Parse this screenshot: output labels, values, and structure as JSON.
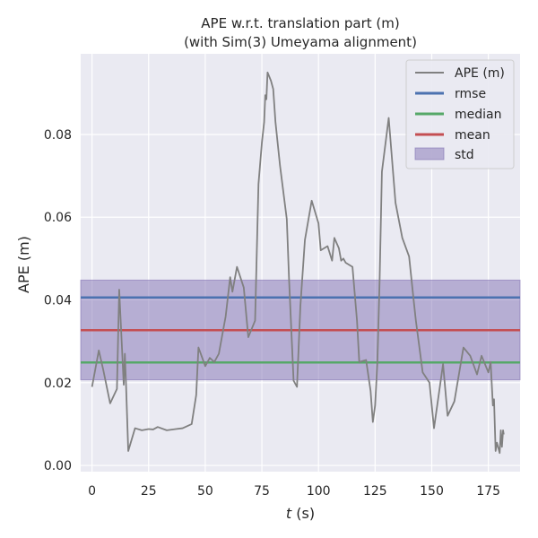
{
  "chart_data": {
    "type": "line",
    "title": [
      "APE w.r.t. translation part (m)",
      "(with Sim(3) Umeyama alignment)"
    ],
    "xlabel_var": "t",
    "xlabel_unit": " (s)",
    "ylabel": "APE (m)",
    "xlim": [
      -5,
      189
    ],
    "ylim": [
      -0.0015,
      0.0995
    ],
    "xticks": [
      0,
      25,
      50,
      75,
      100,
      125,
      150,
      175
    ],
    "yticks": [
      0.0,
      0.02,
      0.04,
      0.06,
      0.08
    ],
    "ytick_labels": [
      "0.00",
      "0.02",
      "0.04",
      "0.06",
      "0.08"
    ],
    "grid": true,
    "legend_position": "top-right",
    "series": [
      {
        "name": "APE (m)",
        "color": "#808080",
        "points": [
          [
            0,
            0.019
          ],
          [
            3,
            0.0278
          ],
          [
            5,
            0.023
          ],
          [
            8,
            0.015
          ],
          [
            11,
            0.0185
          ],
          [
            12,
            0.0425
          ],
          [
            14,
            0.0195
          ],
          [
            14.5,
            0.027
          ],
          [
            15,
            0.0198
          ],
          [
            16,
            0.0035
          ],
          [
            19,
            0.009
          ],
          [
            22,
            0.0085
          ],
          [
            25,
            0.0088
          ],
          [
            27,
            0.0087
          ],
          [
            29,
            0.0093
          ],
          [
            33,
            0.0085
          ],
          [
            37,
            0.0088
          ],
          [
            40,
            0.009
          ],
          [
            44,
            0.01
          ],
          [
            46,
            0.017
          ],
          [
            47,
            0.0285
          ],
          [
            50,
            0.024
          ],
          [
            52,
            0.026
          ],
          [
            54,
            0.025
          ],
          [
            56,
            0.027
          ],
          [
            59,
            0.036
          ],
          [
            61,
            0.0455
          ],
          [
            62,
            0.042
          ],
          [
            64,
            0.048
          ],
          [
            67,
            0.043
          ],
          [
            69,
            0.031
          ],
          [
            72,
            0.035
          ],
          [
            73.5,
            0.068
          ],
          [
            75,
            0.078
          ],
          [
            76,
            0.083
          ],
          [
            76.5,
            0.0895
          ],
          [
            77,
            0.0885
          ],
          [
            77.5,
            0.095
          ],
          [
            79,
            0.093
          ],
          [
            80,
            0.091
          ],
          [
            81,
            0.083
          ],
          [
            83,
            0.0725
          ],
          [
            86,
            0.0595
          ],
          [
            87,
            0.045
          ],
          [
            89,
            0.0205
          ],
          [
            90.5,
            0.019
          ],
          [
            92,
            0.0385
          ],
          [
            94,
            0.0545
          ],
          [
            97,
            0.064
          ],
          [
            100,
            0.0585
          ],
          [
            101,
            0.052
          ],
          [
            104,
            0.053
          ],
          [
            106,
            0.0495
          ],
          [
            107,
            0.055
          ],
          [
            109,
            0.0525
          ],
          [
            110,
            0.0495
          ],
          [
            111,
            0.05
          ],
          [
            112,
            0.049
          ],
          [
            115,
            0.048
          ],
          [
            117,
            0.035
          ],
          [
            118,
            0.025
          ],
          [
            121,
            0.0255
          ],
          [
            123,
            0.018
          ],
          [
            124,
            0.0105
          ],
          [
            125,
            0.0145
          ],
          [
            126,
            0.025
          ],
          [
            127,
            0.045
          ],
          [
            128,
            0.071
          ],
          [
            131,
            0.084
          ],
          [
            134,
            0.0635
          ],
          [
            137,
            0.055
          ],
          [
            140,
            0.0505
          ],
          [
            142,
            0.04
          ],
          [
            143,
            0.035
          ],
          [
            146,
            0.0225
          ],
          [
            149,
            0.02
          ],
          [
            151,
            0.009
          ],
          [
            155,
            0.0245
          ],
          [
            157,
            0.012
          ],
          [
            160,
            0.0155
          ],
          [
            164,
            0.0285
          ],
          [
            167,
            0.0265
          ],
          [
            170,
            0.022
          ],
          [
            172,
            0.0265
          ],
          [
            175,
            0.0225
          ],
          [
            176,
            0.025
          ],
          [
            177,
            0.0145
          ],
          [
            177.5,
            0.016
          ],
          [
            178.2,
            0.0035
          ],
          [
            178.8,
            0.0055
          ],
          [
            180,
            0.003
          ],
          [
            180.5,
            0.0085
          ],
          [
            181,
            0.0045
          ],
          [
            181.5,
            0.0085
          ],
          [
            181.8,
            0.0075
          ]
        ]
      },
      {
        "name": "rmse",
        "color": "#4c72b0",
        "value": 0.0406
      },
      {
        "name": "median",
        "color": "#55a868",
        "value": 0.0249
      },
      {
        "name": "mean",
        "color": "#c44e52",
        "value": 0.0327
      }
    ],
    "band": {
      "name": "std",
      "color": "#8172b3",
      "lower": 0.0207,
      "upper": 0.0448
    }
  }
}
